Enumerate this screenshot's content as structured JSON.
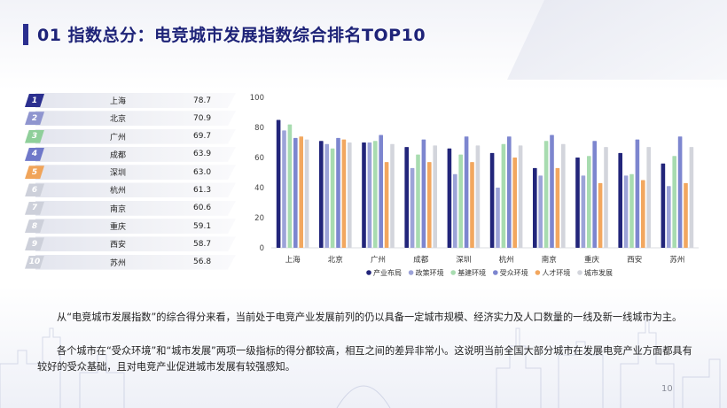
{
  "title": "01 指数总分：电竞城市发展指数综合排名TOP10",
  "ranking": [
    {
      "rank": "1",
      "city": "上海",
      "score": "78.7",
      "color": "#2b2f8f"
    },
    {
      "rank": "2",
      "city": "北京",
      "score": "70.9",
      "color": "#8f95cf"
    },
    {
      "rank": "3",
      "city": "广州",
      "score": "69.7",
      "color": "#8fcf9a"
    },
    {
      "rank": "4",
      "city": "成都",
      "score": "63.9",
      "color": "#6f78c9"
    },
    {
      "rank": "5",
      "city": "深圳",
      "score": "63.0",
      "color": "#f0a45a"
    },
    {
      "rank": "6",
      "city": "杭州",
      "score": "61.3",
      "color": "#cdd0da"
    },
    {
      "rank": "7",
      "city": "南京",
      "score": "60.6",
      "color": "#cdd0da"
    },
    {
      "rank": "8",
      "city": "重庆",
      "score": "59.1",
      "color": "#cdd0da"
    },
    {
      "rank": "9",
      "city": "西安",
      "score": "58.7",
      "color": "#cdd0da"
    },
    {
      "rank": "10",
      "city": "苏州",
      "score": "56.8",
      "color": "#cdd0da"
    }
  ],
  "chart_data": {
    "type": "bar",
    "categories": [
      "上海",
      "北京",
      "广州",
      "成都",
      "深圳",
      "杭州",
      "南京",
      "重庆",
      "西安",
      "苏州"
    ],
    "ylim": [
      0,
      100
    ],
    "yticks": [
      "0",
      "20",
      "40",
      "60",
      "80",
      "100"
    ],
    "grid": false,
    "legend": "bottom",
    "series": [
      {
        "name": "产业布局",
        "color": "#22257a",
        "values": [
          85,
          71,
          70,
          67,
          66,
          63,
          53,
          60,
          63,
          56
        ]
      },
      {
        "name": "政策环境",
        "color": "#9ca3d8",
        "values": [
          78,
          69,
          70,
          53,
          49,
          40,
          48,
          48,
          48,
          41
        ]
      },
      {
        "name": "基建环境",
        "color": "#a8dcb0",
        "values": [
          82,
          66,
          71,
          62,
          62,
          69,
          71,
          61,
          49,
          61
        ]
      },
      {
        "name": "受众环境",
        "color": "#7d86cf",
        "values": [
          73,
          73,
          75,
          72,
          74,
          74,
          75,
          71,
          72,
          74
        ]
      },
      {
        "name": "人才环境",
        "color": "#f2a75f",
        "values": [
          74,
          72,
          57,
          57,
          57,
          60,
          53,
          43,
          45,
          43
        ]
      },
      {
        "name": "城市发展",
        "color": "#d3d5dc",
        "values": [
          72,
          70,
          69,
          68,
          68,
          68,
          69,
          67,
          67,
          67
        ]
      }
    ]
  },
  "paragraphs": [
    "从“电竞城市发展指数”的综合得分来看，当前处于电竞产业发展前列的仍以具备一定城市规模、经济实力及人口数量的一线及新一线城市为主。",
    "各个城市在“受众环境”和“城市发展”两项一级指标的得分都较高，相互之间的差异非常小。这说明当前全国大部分城市在发展电竞产业方面都具有较好的受众基础，且对电竞产业促进城市发展有较强感知。"
  ],
  "page_number": "10"
}
